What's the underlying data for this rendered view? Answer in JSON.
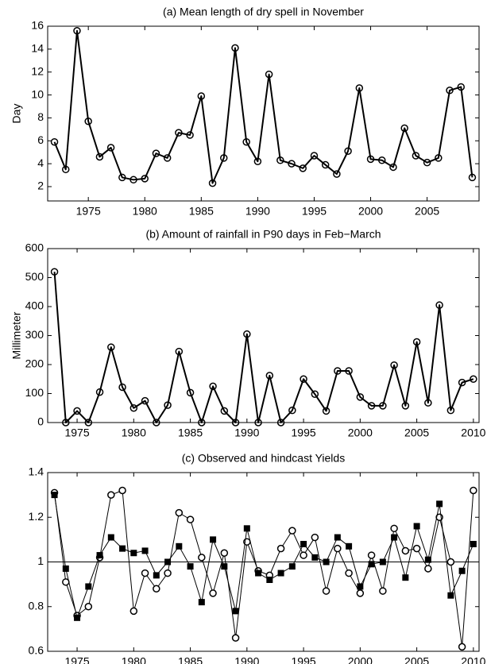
{
  "chart_data": [
    {
      "type": "line",
      "title": "(a) Mean length of dry spell in November",
      "ylabel": "Day",
      "x": [
        1972,
        1973,
        1974,
        1975,
        1976,
        1977,
        1978,
        1979,
        1980,
        1981,
        1982,
        1983,
        1984,
        1985,
        1986,
        1987,
        1988,
        1989,
        1990,
        1991,
        1992,
        1993,
        1994,
        1995,
        1996,
        1997,
        1998,
        1999,
        2000,
        2001,
        2002,
        2003,
        2004,
        2005,
        2006,
        2007,
        2008,
        2009
      ],
      "series": [
        {
          "color": "#000000",
          "marker": "circle",
          "marker_fill": "none",
          "line_width": 2,
          "values": [
            5.9,
            3.5,
            15.6,
            7.7,
            4.6,
            5.4,
            2.8,
            2.6,
            2.7,
            4.9,
            4.5,
            6.7,
            6.5,
            9.9,
            2.3,
            4.5,
            14.1,
            5.9,
            4.2,
            11.8,
            4.3,
            4.0,
            3.6,
            4.7,
            3.9,
            3.1,
            5.1,
            10.6,
            4.4,
            4.3,
            3.7,
            7.1,
            4.7,
            4.1,
            4.5,
            10.4,
            10.7,
            2.8
          ]
        }
      ],
      "xlim": [
        1971.4,
        2009.6
      ],
      "xticks": [
        1975,
        1980,
        1985,
        1990,
        1995,
        2000,
        2005
      ],
      "ylim": [
        0.75,
        16
      ],
      "yticks": [
        2,
        4,
        6,
        8,
        10,
        12,
        14,
        16
      ]
    },
    {
      "type": "line",
      "title": "(b) Amount of rainfall in P90 days in Feb−March",
      "ylabel": "Millimeter",
      "x": [
        1973,
        1974,
        1975,
        1976,
        1977,
        1978,
        1979,
        1980,
        1981,
        1982,
        1983,
        1984,
        1985,
        1986,
        1987,
        1988,
        1989,
        1990,
        1991,
        1992,
        1993,
        1994,
        1995,
        1996,
        1997,
        1998,
        1999,
        2000,
        2001,
        2002,
        2003,
        2004,
        2005,
        2006,
        2007,
        2008,
        2009,
        2010
      ],
      "series": [
        {
          "color": "#000000",
          "marker": "circle",
          "marker_fill": "none",
          "line_width": 2,
          "values": [
            520,
            0,
            40,
            0,
            105,
            260,
            122,
            50,
            75,
            0,
            60,
            245,
            103,
            0,
            125,
            40,
            0,
            305,
            0,
            162,
            0,
            42,
            150,
            98,
            40,
            178,
            178,
            88,
            58,
            58,
            198,
            58,
            278,
            68,
            405,
            42,
            138,
            150
          ]
        }
      ],
      "xlim": [
        1972.4,
        2010.5
      ],
      "xticks": [
        1975,
        1980,
        1985,
        1990,
        1995,
        2000,
        2005,
        2010
      ],
      "ylim": [
        0,
        600
      ],
      "yticks": [
        0,
        100,
        200,
        300,
        400,
        500,
        600
      ]
    },
    {
      "type": "line",
      "title": "(c) Observed and hindcast Yields",
      "x": [
        1973,
        1974,
        1975,
        1976,
        1977,
        1978,
        1979,
        1980,
        1981,
        1982,
        1983,
        1984,
        1985,
        1986,
        1987,
        1988,
        1989,
        1990,
        1991,
        1992,
        1993,
        1994,
        1995,
        1996,
        1997,
        1998,
        1999,
        2000,
        2001,
        2002,
        2003,
        2004,
        2005,
        2006,
        2007,
        2008,
        2009,
        2010
      ],
      "series": [
        {
          "color": "#000000",
          "marker": "circle",
          "marker_fill": "#ffffff",
          "line_width": 1,
          "values": [
            1.31,
            0.91,
            0.76,
            0.8,
            1.02,
            1.3,
            1.32,
            0.78,
            0.95,
            0.88,
            0.95,
            1.22,
            1.19,
            1.02,
            0.86,
            1.04,
            0.66,
            1.09,
            0.96,
            0.94,
            1.06,
            1.14,
            1.03,
            1.11,
            0.87,
            1.06,
            0.95,
            0.86,
            1.03,
            0.87,
            1.15,
            1.05,
            1.06,
            0.97,
            1.2,
            1.0,
            0.62,
            1.32
          ]
        },
        {
          "color": "#000000",
          "marker": "square",
          "marker_fill": "#000000",
          "line_width": 1,
          "values": [
            1.3,
            0.97,
            0.75,
            0.89,
            1.03,
            1.11,
            1.06,
            1.04,
            1.05,
            0.94,
            1.0,
            1.07,
            0.98,
            0.82,
            1.1,
            0.98,
            0.78,
            1.15,
            0.95,
            0.92,
            0.95,
            0.98,
            1.08,
            1.02,
            1.0,
            1.11,
            1.07,
            0.89,
            0.99,
            1.0,
            1.11,
            0.93,
            1.16,
            1.01,
            1.26,
            0.85,
            0.96,
            1.08
          ]
        }
      ],
      "reference_line": 1,
      "xlim": [
        1972.4,
        2010.5
      ],
      "xticks": [
        1975,
        1980,
        1985,
        1990,
        1995,
        2000,
        2005,
        2010
      ],
      "ylim": [
        0.6,
        1.4
      ],
      "yticks": [
        0.6,
        0.8,
        1,
        1.2,
        1.4
      ]
    }
  ]
}
